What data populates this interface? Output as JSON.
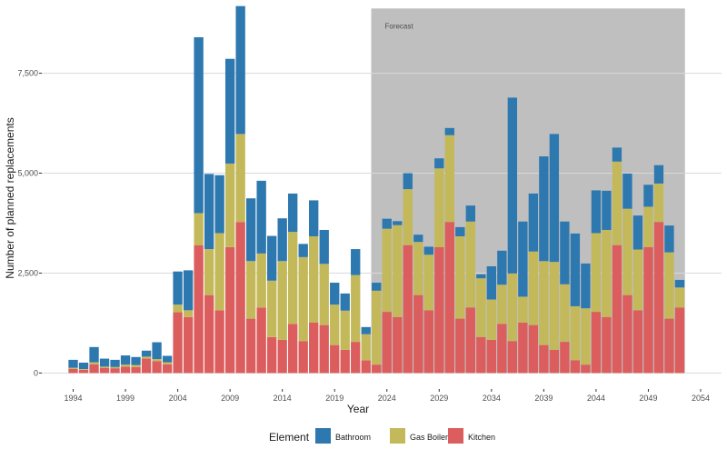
{
  "chart_data": {
    "type": "bar",
    "stacked": true,
    "xlabel": "Year",
    "ylabel": "Number of planned replacements",
    "xlim": [
      1991,
      2056
    ],
    "ylim": [
      -400,
      9150
    ],
    "x_ticks": [
      1994,
      1999,
      2004,
      2009,
      2014,
      2019,
      2024,
      2029,
      2034,
      2039,
      2044,
      2049,
      2054
    ],
    "y_ticks": [
      0,
      2500,
      5000,
      7500
    ],
    "y_tick_labels": [
      "0",
      "2,500",
      "5,000",
      "7,500"
    ],
    "grid": "horizontal",
    "legend": {
      "title": "Element",
      "position": "bottom"
    },
    "colors": {
      "Bathroom": "#2e78b0",
      "Gas Boiler": "#c3b95a",
      "Kitchen": "#dc5d5d",
      "forecast": "#bfbfbf",
      "grid": "#d9d9d9"
    },
    "annotation": {
      "label": "Forecast",
      "x_start": 2022.5,
      "x_end": 2052.5
    },
    "x": [
      1994,
      1995,
      1996,
      1997,
      1998,
      1999,
      2000,
      2001,
      2002,
      2003,
      2004,
      2005,
      2006,
      2007,
      2008,
      2009,
      2010,
      2011,
      2012,
      2013,
      2014,
      2015,
      2016,
      2017,
      2018,
      2019,
      2020,
      2021,
      2022,
      2023,
      2024,
      2025,
      2026,
      2027,
      2028,
      2029,
      2030,
      2031,
      2032,
      2033,
      2034,
      2035,
      2036,
      2037,
      2038,
      2039,
      2040,
      2041,
      2042,
      2043,
      2044,
      2045,
      2046,
      2047,
      2048,
      2049,
      2050,
      2051,
      2052
    ],
    "series": [
      {
        "name": "Kitchen",
        "values": [
          100,
          80,
          220,
          130,
          120,
          160,
          150,
          360,
          300,
          220,
          1520,
          1400,
          3200,
          1950,
          1570,
          3150,
          3780,
          1360,
          1640,
          900,
          830,
          1230,
          800,
          1260,
          1200,
          700,
          580,
          780,
          320,
          210,
          1530,
          1400,
          3200,
          1950,
          1570,
          3150,
          3780,
          1360,
          1640,
          900,
          830,
          1230,
          800,
          1260,
          1200,
          700,
          580,
          780,
          320,
          210,
          1530,
          1400,
          3200,
          1950,
          1570,
          3150,
          3780,
          1360,
          1640
        ]
      },
      {
        "name": "Gas Boiler",
        "values": [
          30,
          20,
          50,
          30,
          30,
          50,
          50,
          50,
          50,
          50,
          190,
          170,
          800,
          1150,
          1930,
          2090,
          2200,
          1440,
          1350,
          1410,
          1970,
          2300,
          2100,
          2160,
          1530,
          1010,
          980,
          1670,
          650,
          1850,
          2080,
          2300,
          1400,
          1330,
          1390,
          1970,
          2170,
          2060,
          2150,
          1470,
          1010,
          980,
          1690,
          650,
          1840,
          2100,
          2200,
          1440,
          1350,
          1410,
          1970,
          2180,
          2090,
          2160,
          1520,
          1010,
          960,
          1660,
          500
        ]
      },
      {
        "name": "Bathroom",
        "values": [
          200,
          160,
          380,
          200,
          180,
          230,
          200,
          150,
          420,
          160,
          830,
          1000,
          4400,
          1880,
          1450,
          2620,
          3200,
          1570,
          1820,
          1120,
          1070,
          960,
          330,
          900,
          850,
          550,
          430,
          650,
          180,
          200,
          250,
          100,
          400,
          180,
          200,
          250,
          180,
          230,
          400,
          100,
          830,
          850,
          4400,
          1880,
          1450,
          2620,
          3200,
          1570,
          1820,
          1120,
          1070,
          980,
          350,
          880,
          850,
          550,
          460,
          670,
          190
        ]
      }
    ]
  }
}
